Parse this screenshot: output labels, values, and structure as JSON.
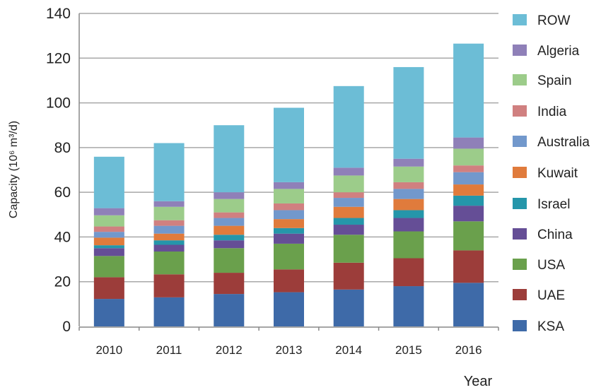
{
  "chart_data": {
    "type": "bar",
    "stacked": true,
    "title": "",
    "xlabel": "Year",
    "ylabel": "Capacity (10⁶ m³/d)",
    "ylim": [
      0,
      140
    ],
    "yticks": [
      0,
      20,
      40,
      60,
      80,
      100,
      120,
      140
    ],
    "grid": true,
    "legend_position": "right",
    "categories": [
      "2010",
      "2011",
      "2012",
      "2013",
      "2014",
      "2015",
      "2016"
    ],
    "series": [
      {
        "name": "KSA",
        "color": "#3e6aa8",
        "values": [
          12.3,
          13,
          14.5,
          15.3,
          16.5,
          18,
          19.5
        ]
      },
      {
        "name": "UAE",
        "color": "#9c3d3a",
        "values": [
          9.7,
          10.3,
          9.5,
          10.2,
          12,
          12.5,
          14.5
        ]
      },
      {
        "name": "USA",
        "color": "#6aa04c",
        "values": [
          9.5,
          10.2,
          11,
          11.5,
          12.5,
          12,
          13
        ]
      },
      {
        "name": "China",
        "color": "#654e96",
        "values": [
          3.5,
          3,
          3.5,
          4.5,
          4.5,
          6,
          7
        ]
      },
      {
        "name": "Israel",
        "color": "#2596aa",
        "values": [
          1.3,
          2,
          2.5,
          2.5,
          3,
          3.5,
          4.5
        ]
      },
      {
        "name": "Kuwait",
        "color": "#e07b3c",
        "values": [
          3.4,
          3,
          4,
          4,
          5,
          5,
          5
        ]
      },
      {
        "name": "Australia",
        "color": "#7298cc",
        "values": [
          2.6,
          3.5,
          3.5,
          4,
          4,
          4.5,
          5.5
        ]
      },
      {
        "name": "India",
        "color": "#d08080",
        "values": [
          2.4,
          2.5,
          2.5,
          3,
          2.5,
          3,
          3
        ]
      },
      {
        "name": "Spain",
        "color": "#9ccc8a",
        "values": [
          5,
          6,
          6,
          6.5,
          7.5,
          7,
          7.5
        ]
      },
      {
        "name": "Algeria",
        "color": "#8f80b8",
        "values": [
          3.2,
          2.5,
          3,
          3,
          3.5,
          3.5,
          5
        ]
      },
      {
        "name": "ROW",
        "color": "#6cbdd6",
        "values": [
          23,
          26,
          30,
          33.3,
          36.5,
          41,
          42
        ]
      }
    ]
  }
}
